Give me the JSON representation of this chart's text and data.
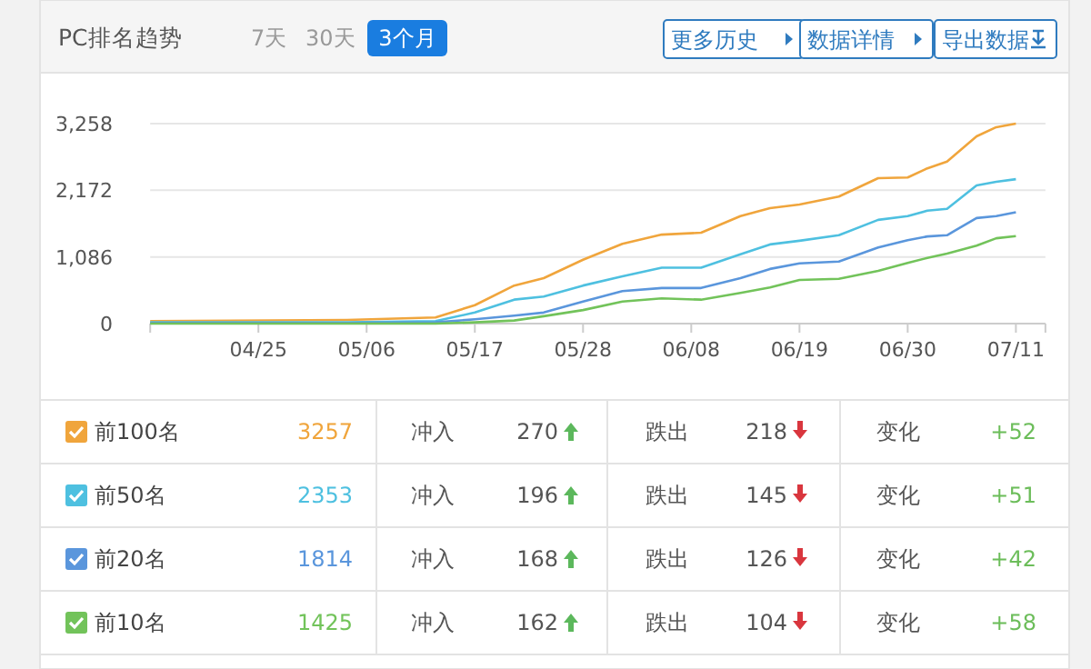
{
  "chart_data": {
    "type": "line",
    "title": "PC排名趋势",
    "x": [
      "--04-14",
      "--05-04",
      "--05-13",
      "--05-17",
      "--05-21",
      "--05-24",
      "--05-28",
      "--06-01",
      "--06-05",
      "--06-09",
      "--06-13",
      "--06-16",
      "--06-19",
      "--06-23",
      "--06-27",
      "--06-30",
      "--07-02",
      "--07-04",
      "--07-07",
      "--07-09",
      "--07-11"
    ],
    "series": [
      {
        "name": "前100名",
        "color": "#f0a53c",
        "values": [
          40,
          60,
          100,
          300,
          620,
          740,
          1040,
          1300,
          1450,
          1480,
          1750,
          1880,
          1940,
          2070,
          2370,
          2380,
          2530,
          2640,
          3050,
          3200,
          3257
        ]
      },
      {
        "name": "前50名",
        "color": "#4ec0e0",
        "values": [
          20,
          20,
          40,
          180,
          390,
          440,
          620,
          770,
          910,
          910,
          1130,
          1290,
          1350,
          1440,
          1690,
          1750,
          1840,
          1870,
          2250,
          2310,
          2353
        ]
      },
      {
        "name": "前20名",
        "color": "#5a96dc",
        "values": [
          10,
          10,
          20,
          70,
          130,
          180,
          360,
          530,
          580,
          580,
          740,
          890,
          980,
          1010,
          1240,
          1360,
          1420,
          1440,
          1720,
          1750,
          1814
        ]
      },
      {
        "name": "前10名",
        "color": "#72c35a",
        "values": [
          0,
          0,
          0,
          20,
          50,
          120,
          220,
          360,
          410,
          390,
          500,
          590,
          710,
          730,
          860,
          990,
          1070,
          1140,
          1270,
          1390,
          1425
        ]
      }
    ],
    "xlim": [
      "--04-14",
      "--07-14"
    ],
    "xticks": [
      {
        "value": "--04-14",
        "label": null
      },
      {
        "value": "--04-25",
        "label": "04/25"
      },
      {
        "value": "--05-06",
        "label": "05/06"
      },
      {
        "value": "--05-17",
        "label": "05/17"
      },
      {
        "value": "--05-28",
        "label": "05/28"
      },
      {
        "value": "--06-08",
        "label": "06/08"
      },
      {
        "value": "--06-19",
        "label": "06/19"
      },
      {
        "value": "--06-30",
        "label": "06/30"
      },
      {
        "value": "--07-11",
        "label": "07/11"
      },
      {
        "value": "--07-14",
        "label": null
      }
    ],
    "ylim": [
      0,
      3258
    ],
    "yticks": [
      0,
      {
        "value": 1086,
        "label": "1,086"
      },
      {
        "value": 2172,
        "label": "2,172"
      },
      {
        "value": 3258,
        "label": "3,258"
      }
    ],
    "grid": "y",
    "legend": "bottom",
    "marker": "none",
    "line_style": "solid",
    "annotations": [
      "7天",
      "30天",
      "3个月",
      "更多历史",
      "数据详情",
      "导出数据",
      "3257",
      "冲入",
      "270",
      "跌出",
      "218",
      "变化",
      "+52",
      "2353",
      "冲入",
      "196",
      "跌出",
      "145",
      "变化",
      "+51",
      "1814",
      "冲入",
      "168",
      "跌出",
      "126",
      "变化",
      "+42",
      "1425",
      "冲入",
      "162",
      "跌出",
      "104",
      "变化",
      "+58"
    ]
  }
}
